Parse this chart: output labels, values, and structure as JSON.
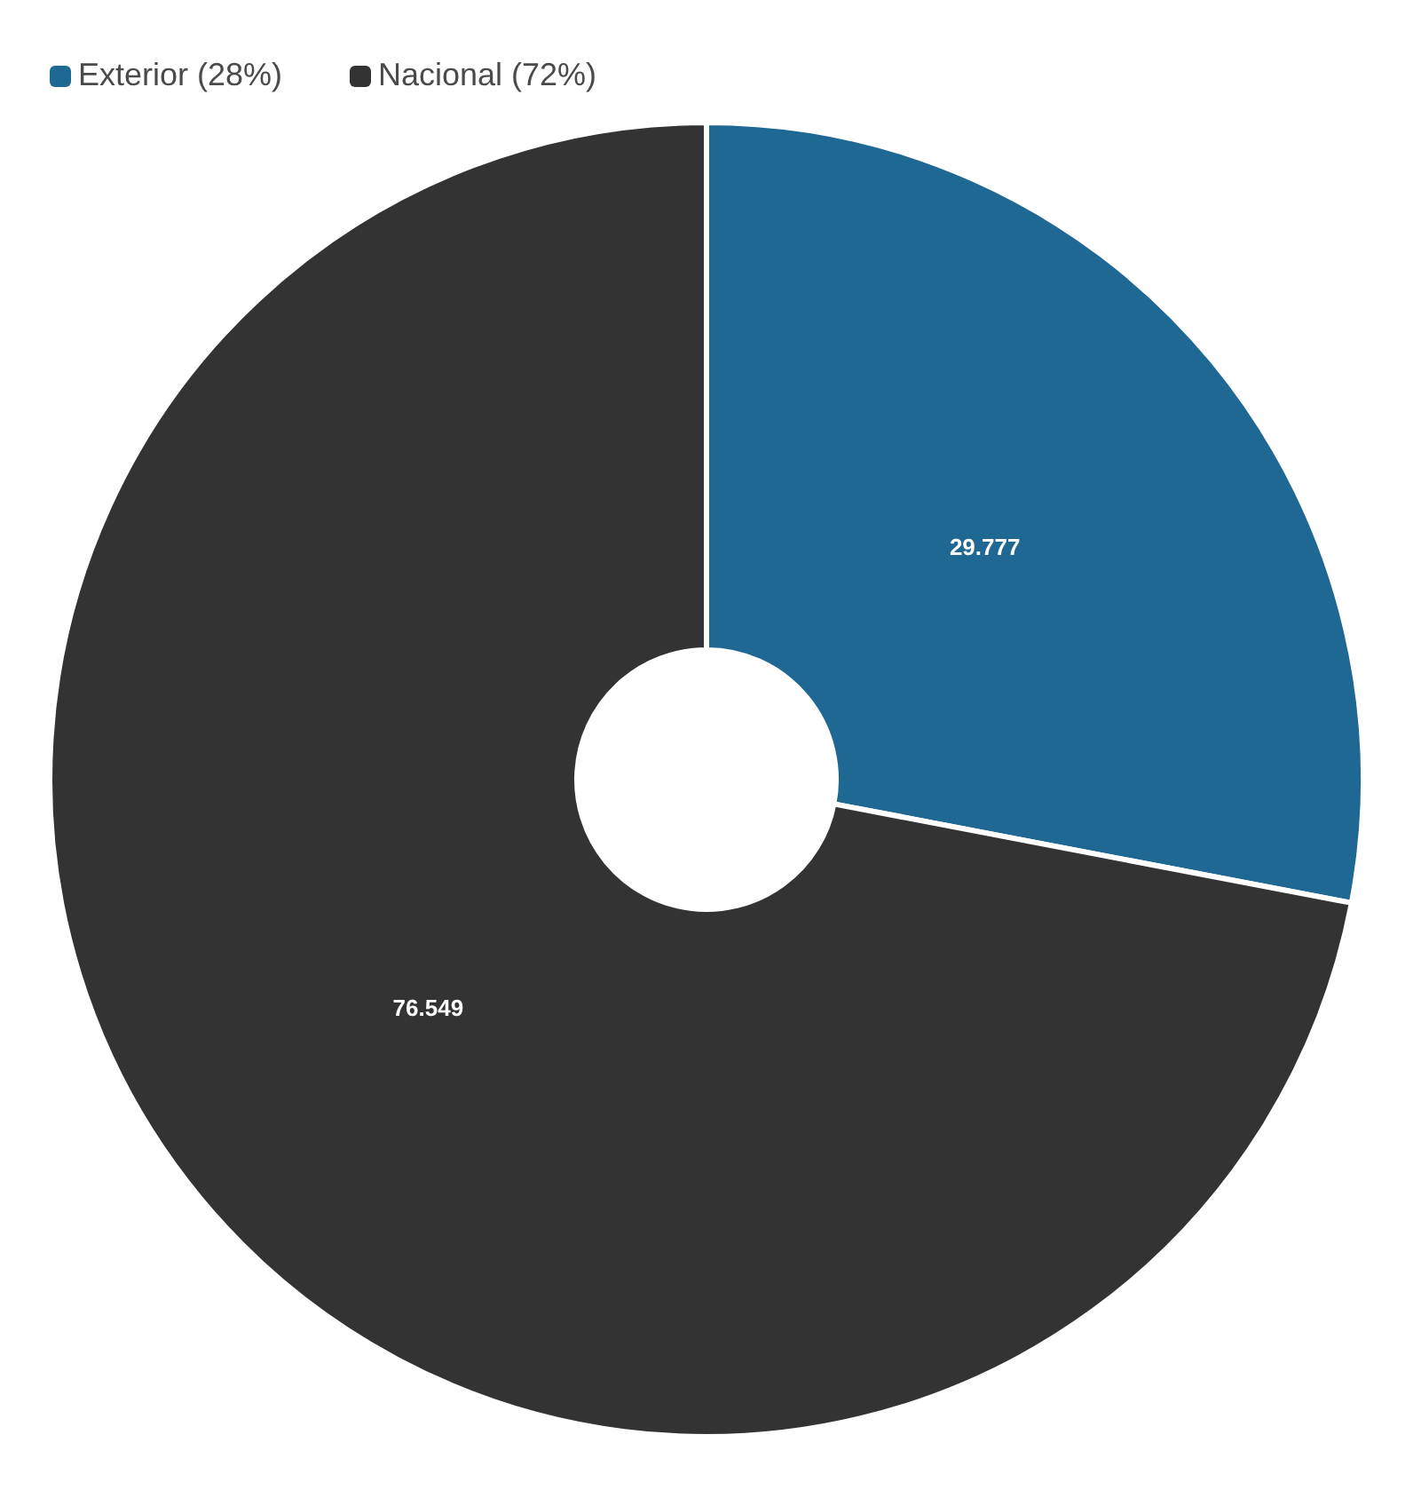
{
  "chart_data": {
    "type": "donut",
    "categories": [
      "Exterior (28%)",
      "Nacional (72%)"
    ],
    "values": [
      29.777,
      76.549
    ],
    "colors": [
      "#1f6894",
      "#333333"
    ],
    "data_labels": true,
    "legend": "top left"
  }
}
